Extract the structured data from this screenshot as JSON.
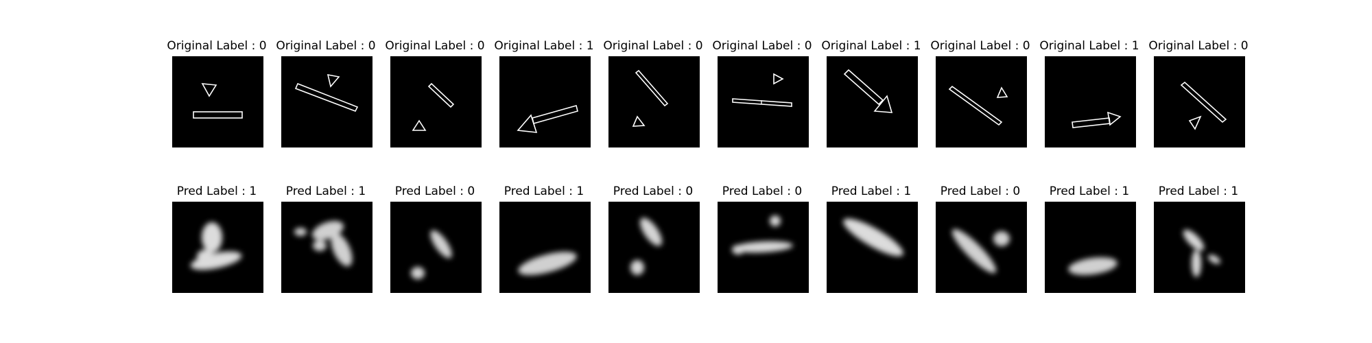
{
  "rows": [
    {
      "row": "original",
      "panels": [
        {
          "title": "Original Label : 0",
          "label": 0,
          "content": "outline-shapes"
        },
        {
          "title": "Original Label : 0",
          "label": 0,
          "content": "outline-shapes"
        },
        {
          "title": "Original Label : 0",
          "label": 0,
          "content": "outline-shapes"
        },
        {
          "title": "Original Label : 1",
          "label": 1,
          "content": "outline-shapes"
        },
        {
          "title": "Original Label : 0",
          "label": 0,
          "content": "outline-shapes"
        },
        {
          "title": "Original Label : 0",
          "label": 0,
          "content": "outline-shapes"
        },
        {
          "title": "Original Label : 1",
          "label": 1,
          "content": "outline-shapes"
        },
        {
          "title": "Original Label : 0",
          "label": 0,
          "content": "outline-shapes"
        },
        {
          "title": "Original Label : 1",
          "label": 1,
          "content": "outline-shapes"
        },
        {
          "title": "Original Label : 0",
          "label": 0,
          "content": "outline-shapes"
        }
      ]
    },
    {
      "row": "predicted",
      "panels": [
        {
          "title": "Pred Label : 1",
          "label": 1,
          "content": "blurred-blobs"
        },
        {
          "title": "Pred Label : 1",
          "label": 1,
          "content": "blurred-blobs"
        },
        {
          "title": "Pred Label : 0",
          "label": 0,
          "content": "blurred-blobs"
        },
        {
          "title": "Pred Label : 1",
          "label": 1,
          "content": "blurred-blobs"
        },
        {
          "title": "Pred Label : 0",
          "label": 0,
          "content": "blurred-blobs"
        },
        {
          "title": "Pred Label : 0",
          "label": 0,
          "content": "blurred-blobs"
        },
        {
          "title": "Pred Label : 1",
          "label": 1,
          "content": "blurred-blobs"
        },
        {
          "title": "Pred Label : 0",
          "label": 0,
          "content": "blurred-blobs"
        },
        {
          "title": "Pred Label : 1",
          "label": 1,
          "content": "blurred-blobs"
        },
        {
          "title": "Pred Label : 1",
          "label": 1,
          "content": "blurred-blobs"
        }
      ]
    }
  ],
  "colors": {
    "background": "#ffffff",
    "panel": "#000000",
    "stroke": "#ffffff",
    "blob": "#e0e0e0"
  }
}
